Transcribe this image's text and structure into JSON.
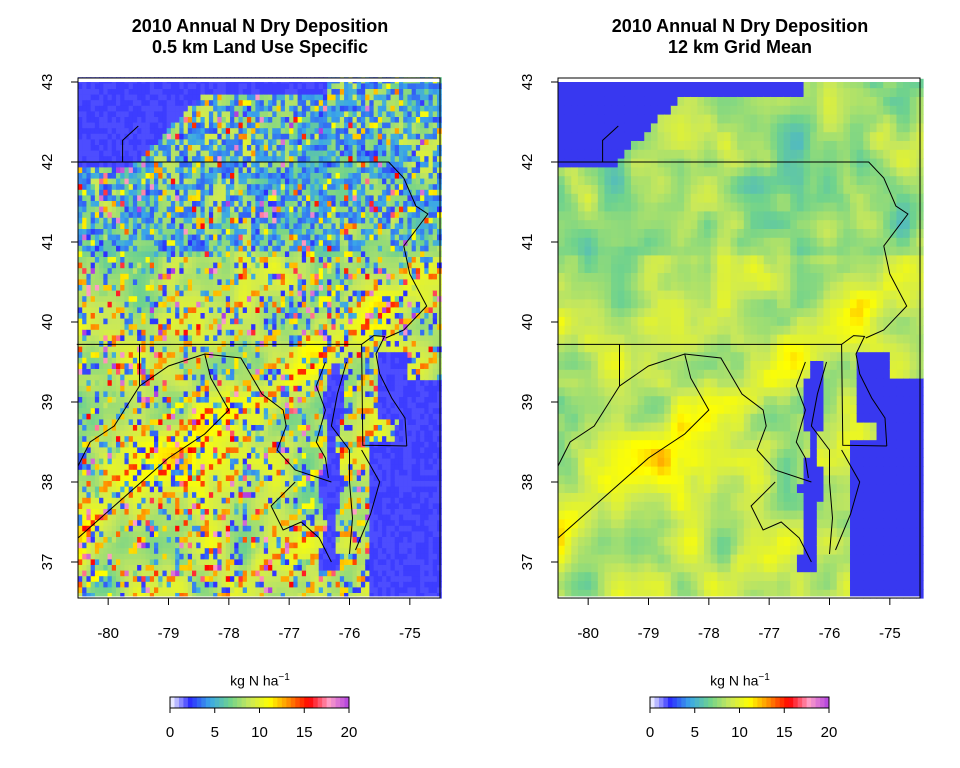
{
  "panels": [
    {
      "id": "left",
      "title_line1": "2010 Annual N Dry Deposition",
      "title_line2": "0.5 km Land Use Specific"
    },
    {
      "id": "right",
      "title_line1": "2010 Annual N Dry Deposition",
      "title_line2": "12 km Grid Mean"
    }
  ],
  "axes": {
    "longitude_ticks": [
      "-80",
      "-79",
      "-78",
      "-77",
      "-76",
      "-75"
    ],
    "latitude_ticks": [
      "37",
      "38",
      "39",
      "40",
      "41",
      "42",
      "43"
    ],
    "lon_range": [
      -80.5,
      -74.5
    ],
    "lat_range": [
      36.55,
      43.05
    ]
  },
  "legend": {
    "unit_base": "kg N ha",
    "unit_exponent": "−1",
    "ticks": [
      "0",
      "5",
      "10",
      "15",
      "20"
    ],
    "range": [
      0,
      20
    ],
    "colors": [
      "#ffffff",
      "#2c2cff",
      "#3aa7e8",
      "#6ed28e",
      "#c9e85a",
      "#ffff00",
      "#ff8a00",
      "#ff0000",
      "#ff9fc8",
      "#b040e0"
    ]
  }
}
